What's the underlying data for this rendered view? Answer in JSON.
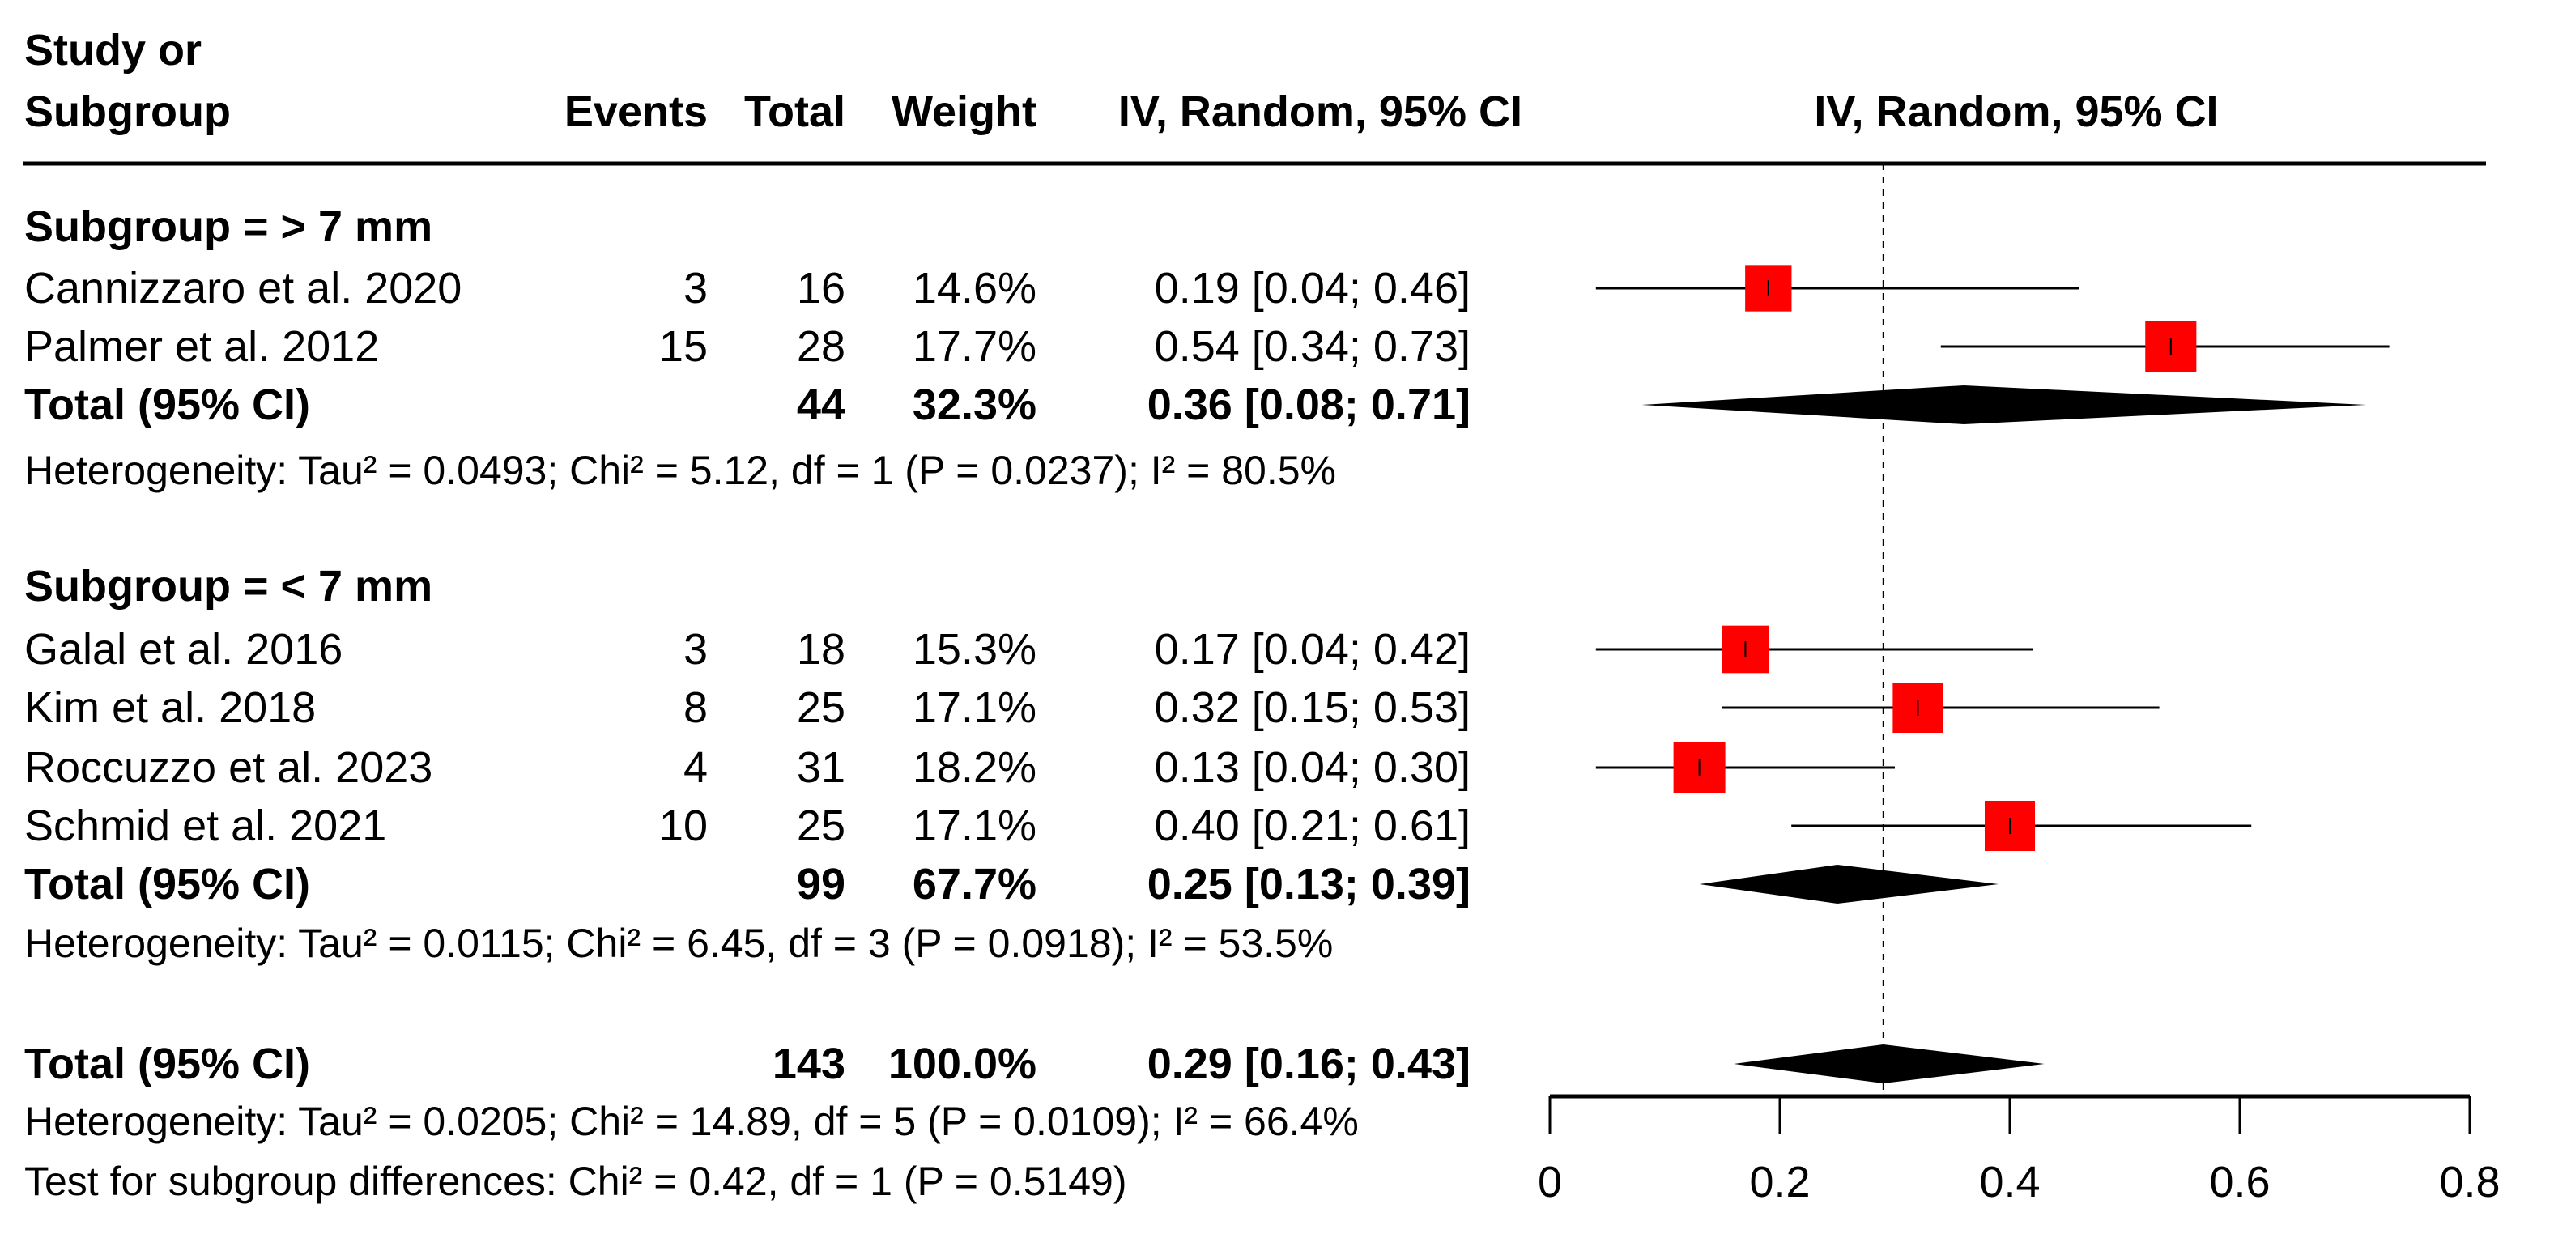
{
  "chart_data": {
    "type": "forest",
    "headers": {
      "study_line1": "Study or",
      "study_line2": "Subgroup",
      "events": "Events",
      "total": "Total",
      "weight": "Weight",
      "ci": "IV, Random, 95% CI",
      "plot": "IV, Random, 95% CI"
    },
    "subgroups": [
      {
        "label": "Subgroup = > 7 mm",
        "studies": [
          {
            "name": "Cannizzaro et al. 2020",
            "events": "3",
            "total": "16",
            "weight": "14.6%",
            "ci_text": "0.19 [0.04; 0.46]",
            "est": 0.19,
            "lo": 0.04,
            "hi": 0.46,
            "w": 14.6
          },
          {
            "name": "Palmer et al. 2012",
            "events": "15",
            "total": "28",
            "weight": "17.7%",
            "ci_text": "0.54 [0.34; 0.73]",
            "est": 0.54,
            "lo": 0.34,
            "hi": 0.73,
            "w": 17.7
          }
        ],
        "total": {
          "label": "Total (95% CI)",
          "total": "44",
          "weight": "32.3%",
          "ci_text": "0.36 [0.08; 0.71]",
          "est": 0.36,
          "lo": 0.08,
          "hi": 0.71
        },
        "heterogeneity": "Heterogeneity: Tau² = 0.0493; Chi² = 5.12, df = 1 (P = 0.0237); I² = 80.5%"
      },
      {
        "label": "Subgroup = < 7 mm",
        "studies": [
          {
            "name": "Galal et al. 2016",
            "events": "3",
            "total": "18",
            "weight": "15.3%",
            "ci_text": "0.17 [0.04; 0.42]",
            "est": 0.17,
            "lo": 0.04,
            "hi": 0.42,
            "w": 15.3
          },
          {
            "name": "Kim et al. 2018",
            "events": "8",
            "total": "25",
            "weight": "17.1%",
            "ci_text": "0.32 [0.15; 0.53]",
            "est": 0.32,
            "lo": 0.15,
            "hi": 0.53,
            "w": 17.1
          },
          {
            "name": "Roccuzzo et al. 2023",
            "events": "4",
            "total": "31",
            "weight": "18.2%",
            "ci_text": "0.13 [0.04; 0.30]",
            "est": 0.13,
            "lo": 0.04,
            "hi": 0.3,
            "w": 18.2
          },
          {
            "name": "Schmid et al. 2021",
            "events": "10",
            "total": "25",
            "weight": "17.1%",
            "ci_text": "0.40 [0.21; 0.61]",
            "est": 0.4,
            "lo": 0.21,
            "hi": 0.61,
            "w": 17.1
          }
        ],
        "total": {
          "label": "Total (95% CI)",
          "total": "99",
          "weight": "67.7%",
          "ci_text": "0.25 [0.13; 0.39]",
          "est": 0.25,
          "lo": 0.13,
          "hi": 0.39
        },
        "heterogeneity": "Heterogeneity: Tau² = 0.0115; Chi² = 6.45, df = 3 (P = 0.0918); I² = 53.5%"
      }
    ],
    "overall": {
      "label": "Total (95% CI)",
      "total": "143",
      "weight": "100.0%",
      "ci_text": "0.29 [0.16; 0.43]",
      "est": 0.29,
      "lo": 0.16,
      "hi": 0.43
    },
    "overall_heterogeneity": "Heterogeneity: Tau² = 0.0205; Chi² = 14.89, df = 5 (P = 0.0109); I² = 66.4%",
    "subgroup_test": "Test for subgroup differences: Chi² = 0.42, df = 1 (P = 0.5149)",
    "xlim": [
      0,
      0.8
    ],
    "xticks": [
      "0",
      "0.2",
      "0.4",
      "0.6",
      "0.8"
    ],
    "xtick_values": [
      0,
      0.2,
      0.4,
      0.6,
      0.8
    ],
    "reference_line": 0.29,
    "colors": {
      "square": "#ff0000",
      "diamond": "#000000"
    }
  }
}
